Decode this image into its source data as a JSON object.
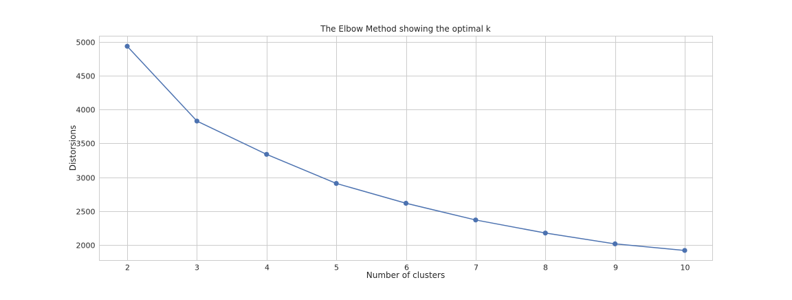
{
  "chart_data": {
    "type": "line",
    "title": "The Elbow Method showing the optimal k",
    "xlabel": "Number of clusters",
    "ylabel": "Distorsions",
    "x": [
      2,
      3,
      4,
      5,
      6,
      7,
      8,
      9,
      10
    ],
    "series": [
      {
        "values": [
          4935,
          3830,
          3338,
          2908,
          2615,
          2368,
          2175,
          2015,
          1918
        ],
        "color": "#4c72b0",
        "marker": "circle"
      }
    ],
    "xticks": [
      2,
      3,
      4,
      5,
      6,
      7,
      8,
      9,
      10
    ],
    "yticks": [
      2000,
      2500,
      3000,
      3500,
      4000,
      4500,
      5000
    ],
    "xlim": [
      1.6,
      10.4
    ],
    "ylim": [
      1770,
      5085
    ],
    "grid": true
  }
}
